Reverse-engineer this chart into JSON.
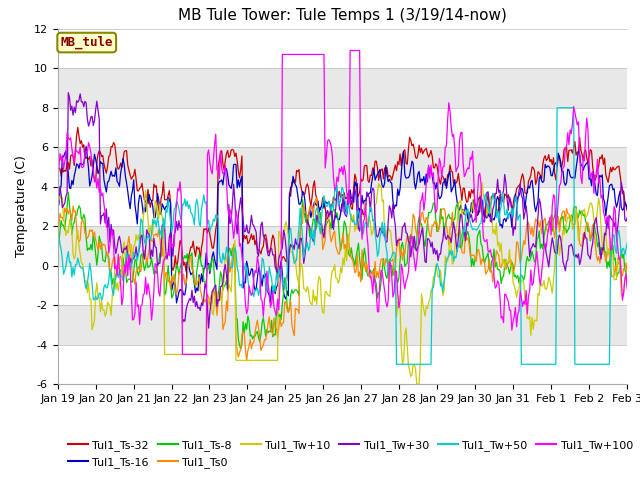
{
  "title": "MB Tule Tower: Tule Temps 1 (3/19/14-now)",
  "ylabel": "Temperature (C)",
  "ylim": [
    -6,
    12
  ],
  "yticks": [
    -6,
    -4,
    -2,
    0,
    2,
    4,
    6,
    8,
    10,
    12
  ],
  "xlabel_ticks": [
    "Jan 19",
    "Jan 20",
    "Jan 21",
    "Jan 22",
    "Jan 23",
    "Jan 24",
    "Jan 25",
    "Jan 26",
    "Jan 27",
    "Jan 28",
    "Jan 29",
    "Jan 30",
    "Jan 31",
    "Feb 1",
    "Feb 2",
    "Feb 3"
  ],
  "n_points": 480,
  "series_names": [
    "Tul1_Ts-32",
    "Tul1_Ts-16",
    "Tul1_Ts-8",
    "Tul1_Ts0",
    "Tul1_Tw+10",
    "Tul1_Tw+30",
    "Tul1_Tw+50",
    "Tul1_Tw+100"
  ],
  "series_colors": [
    "#cc0000",
    "#0000cc",
    "#00cc00",
    "#ff8800",
    "#cccc00",
    "#8800cc",
    "#00cccc",
    "#ff00ff"
  ],
  "legend_label": "MB_tule",
  "legend_box_facecolor": "#ffffcc",
  "legend_box_edgecolor": "#888800",
  "fig_facecolor": "#ffffff",
  "band_colors": [
    "#ffffff",
    "#e8e8e8"
  ],
  "title_fontsize": 11,
  "axis_label_fontsize": 9,
  "tick_fontsize": 8,
  "legend_fontsize": 8,
  "line_width": 0.9
}
